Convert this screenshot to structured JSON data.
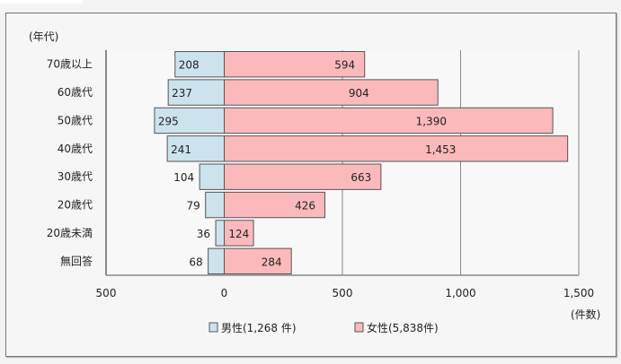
{
  "chart_data": {
    "type": "bar",
    "orientation": "horizontal-diverging",
    "y_axis_title": "(年代)",
    "x_axis_unit": "(件数)",
    "categories": [
      "70歳以上",
      "60歳代",
      "50歳代",
      "40歳代",
      "30歳代",
      "20歳代",
      "20歳未満",
      "無回答"
    ],
    "series": [
      {
        "name": "男性(1,268 件)",
        "color": "#cce3ee",
        "values": [
          208,
          237,
          295,
          241,
          104,
          79,
          36,
          68
        ],
        "labels": [
          "208",
          "237",
          "295",
          "241",
          "104",
          "79",
          "36",
          "68"
        ]
      },
      {
        "name": "女性(5,838件)",
        "color": "#fbb9bb",
        "values": [
          594,
          904,
          1390,
          1453,
          663,
          426,
          124,
          284
        ],
        "labels": [
          "594",
          "904",
          "1,390",
          "1,453",
          "663",
          "426",
          "124",
          "284"
        ]
      }
    ],
    "xlim": [
      -500,
      1500
    ],
    "x_ticks": [
      -500,
      0,
      500,
      1000,
      1500
    ],
    "x_tick_labels": [
      "500",
      "0",
      "500",
      "1,000",
      "1,500"
    ],
    "grid": "vertical",
    "legend": "bottom"
  }
}
